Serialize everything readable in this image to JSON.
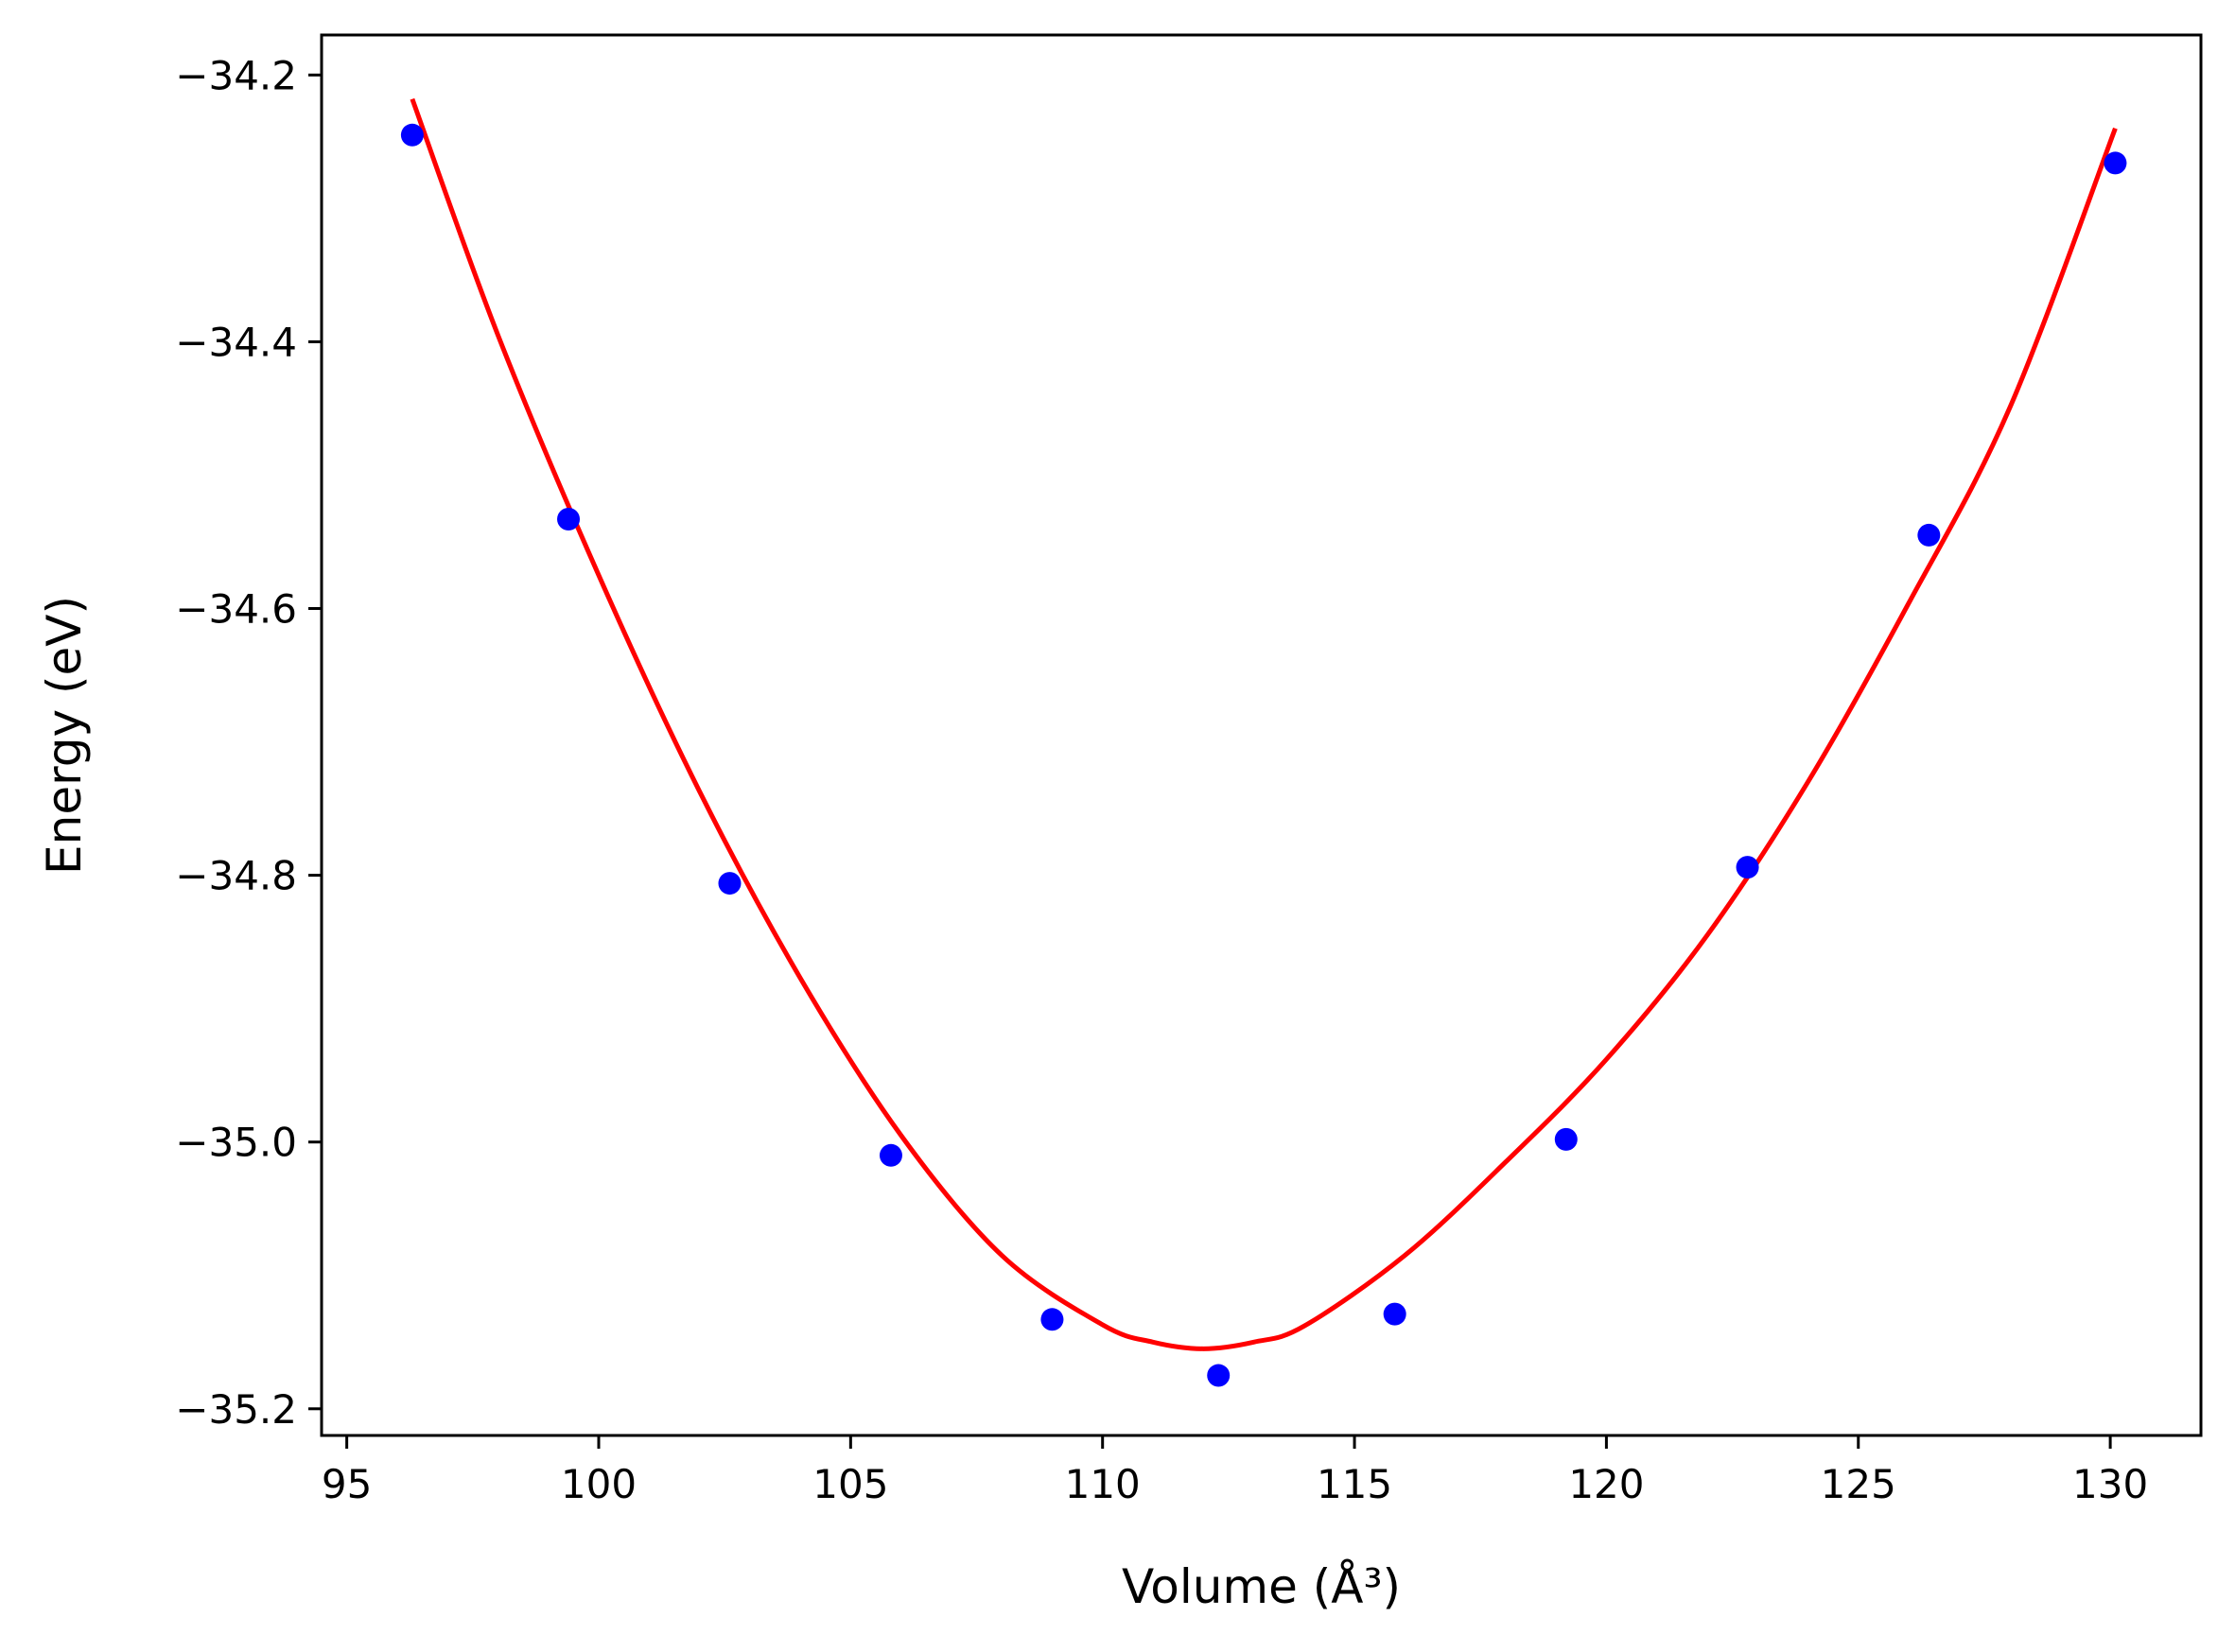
{
  "chart_data": {
    "type": "scatter",
    "xlabel": "Volume (Å³)",
    "ylabel": "Energy (eV)",
    "xlim": [
      94.5,
      131.8
    ],
    "ylim": [
      -35.22,
      -34.17
    ],
    "xticks": [
      95,
      100,
      105,
      110,
      115,
      120,
      125,
      130
    ],
    "xtick_labels": [
      "95",
      "100",
      "105",
      "110",
      "115",
      "120",
      "125",
      "130"
    ],
    "yticks": [
      -35.2,
      -35.0,
      -34.8,
      -34.6,
      -34.4,
      -34.2
    ],
    "ytick_labels": [
      "−35.2",
      "−35.0",
      "−34.8",
      "−34.6",
      "−34.4",
      "−34.2"
    ],
    "grid": false,
    "series": [
      {
        "kind": "points",
        "color": "#0000ff",
        "x": [
          96.3,
          99.4,
          102.6,
          105.8,
          109.0,
          112.3,
          115.8,
          119.2,
          122.8,
          126.4,
          130.1
        ],
        "y": [
          -34.245,
          -34.533,
          -34.806,
          -35.01,
          -35.133,
          -35.175,
          -35.129,
          -34.998,
          -34.794,
          -34.545,
          -34.266
        ]
      },
      {
        "kind": "line",
        "color": "#ff0000",
        "x": [
          96.3,
          98,
          100,
          102,
          104,
          106,
          108,
          110,
          111,
          112,
          113,
          114,
          116,
          118,
          120,
          122,
          124,
          126,
          128,
          130.1
        ],
        "y": [
          -34.218,
          -34.395,
          -34.575,
          -34.737,
          -34.877,
          -34.995,
          -35.085,
          -35.137,
          -35.15,
          -35.155,
          -35.15,
          -35.138,
          -35.085,
          -35.015,
          -34.938,
          -34.845,
          -34.73,
          -34.596,
          -34.45,
          -34.24
        ]
      }
    ]
  }
}
